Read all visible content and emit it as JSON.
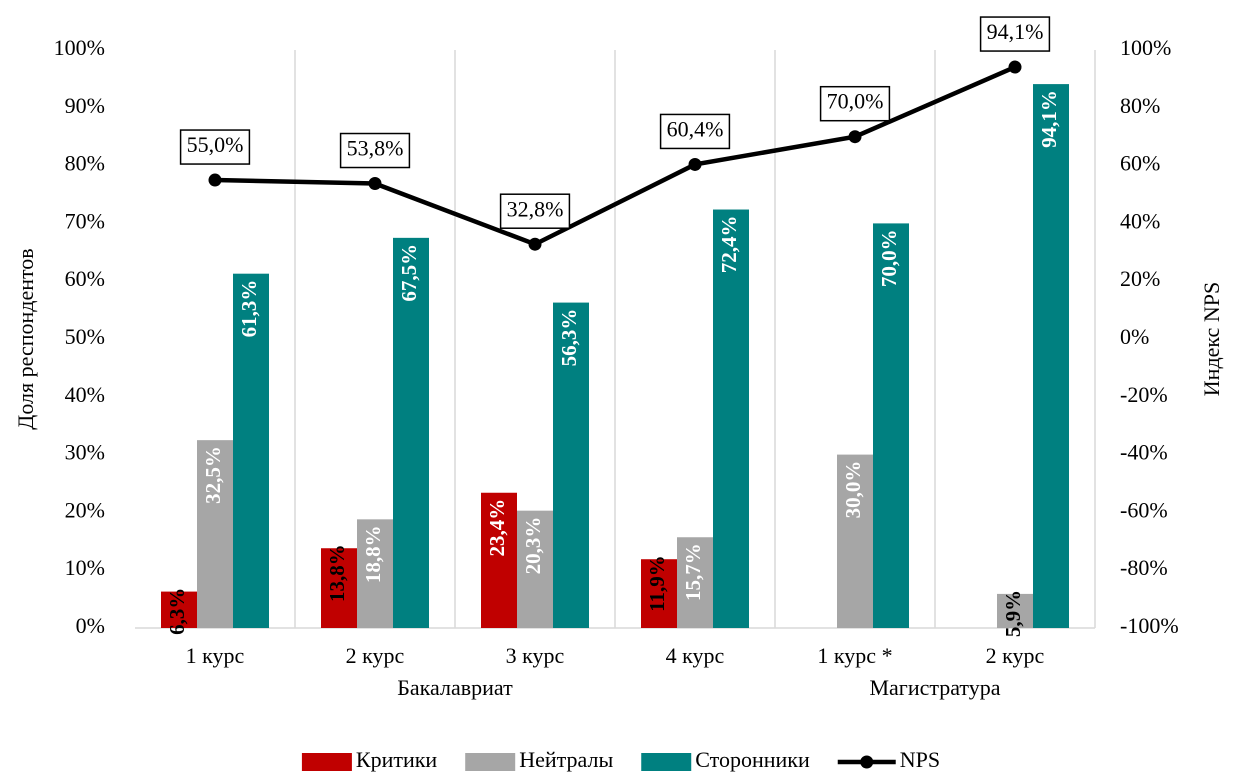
{
  "chart_data": {
    "type": "bar",
    "categories": [
      "1 курс",
      "2 курс",
      "3 курс",
      "4 курс",
      "1 курс *",
      "2 курс"
    ],
    "category_groups": [
      "Бакалавриат",
      "Бакалавриат",
      "Бакалавриат",
      "Бакалавриат",
      "Магистратура",
      "Магистратура"
    ],
    "ylabel": "Доля респондентов",
    "y2label": "Индекс NPS",
    "ylim": [
      0,
      100
    ],
    "yticks": [
      {
        "value": 0,
        "label": "0%"
      },
      {
        "value": 10,
        "label": "10%"
      },
      {
        "value": 20,
        "label": "20%"
      },
      {
        "value": 30,
        "label": "30%"
      },
      {
        "value": 40,
        "label": "40%"
      },
      {
        "value": 50,
        "label": "50%"
      },
      {
        "value": 60,
        "label": "60%"
      },
      {
        "value": 70,
        "label": "70%"
      },
      {
        "value": 80,
        "label": "80%"
      },
      {
        "value": 90,
        "label": "90%"
      },
      {
        "value": 100,
        "label": "100%"
      }
    ],
    "y2lim": [
      -100,
      100
    ],
    "y2ticks": [
      {
        "value": -100,
        "label": "-100%"
      },
      {
        "value": -80,
        "label": "-80%"
      },
      {
        "value": -60,
        "label": "-60%"
      },
      {
        "value": -40,
        "label": "-40%"
      },
      {
        "value": -20,
        "label": "-20%"
      },
      {
        "value": 0,
        "label": "0%"
      },
      {
        "value": 20,
        "label": "20%"
      },
      {
        "value": 40,
        "label": "40%"
      },
      {
        "value": 60,
        "label": "60%"
      },
      {
        "value": 80,
        "label": "80%"
      },
      {
        "value": 100,
        "label": "100%"
      }
    ],
    "grid": "x",
    "legend": "bottom",
    "series": [
      {
        "name": "Критики",
        "type": "bar",
        "color": "#c00000",
        "values": [
          6.3,
          13.8,
          23.4,
          11.9,
          null,
          null
        ],
        "value_labels": [
          "6,3%",
          "13,8%",
          "23,4%",
          "11,9%",
          null,
          null
        ]
      },
      {
        "name": "Нейтралы",
        "type": "bar",
        "color": "#a6a6a6",
        "values": [
          32.5,
          18.8,
          20.3,
          15.7,
          30.0,
          5.9
        ],
        "value_labels": [
          "32,5%",
          "18,8%",
          "20,3%",
          "15,7%",
          "30,0%",
          "5,9%"
        ]
      },
      {
        "name": "Сторонники",
        "type": "bar",
        "color": "#008080",
        "values": [
          61.3,
          67.5,
          56.3,
          72.4,
          70.0,
          94.1
        ],
        "value_labels": [
          "61,3%",
          "67,5%",
          "56,3%",
          "72,4%",
          "70,0%",
          "94,1%"
        ]
      },
      {
        "name": "NPS",
        "type": "line",
        "axis": "y2",
        "color": "#000000",
        "values": [
          55.0,
          53.8,
          32.8,
          60.4,
          70.0,
          94.1
        ],
        "value_labels": [
          "55,0%",
          "53,8%",
          "32,8%",
          "60,4%",
          "70,0%",
          "94,1%"
        ]
      }
    ]
  }
}
